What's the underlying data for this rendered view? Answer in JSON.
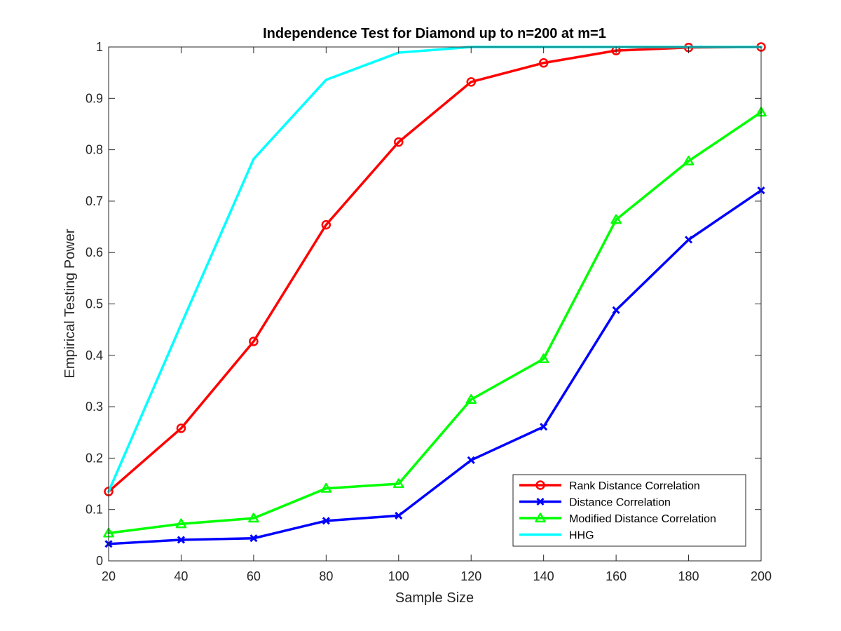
{
  "chart_data": {
    "type": "line",
    "title": "Independence Test for Diamond up to n=200 at m=1",
    "xlabel": "Sample Size",
    "ylabel": "Empirical Testing Power",
    "xlim": [
      20,
      200
    ],
    "ylim": [
      0,
      1
    ],
    "xticks": [
      20,
      40,
      60,
      80,
      100,
      120,
      140,
      160,
      180,
      200
    ],
    "yticks": [
      0,
      0.1,
      0.2,
      0.3,
      0.4,
      0.5,
      0.6,
      0.7,
      0.8,
      0.9,
      1
    ],
    "ytick_labels": [
      "0",
      "0.1",
      "0.2",
      "0.3",
      "0.4",
      "0.5",
      "0.6",
      "0.7",
      "0.8",
      "0.9",
      "1"
    ],
    "grid": false,
    "legend_position": "bottom-right",
    "x": [
      20,
      40,
      60,
      80,
      100,
      120,
      140,
      160,
      180,
      200
    ],
    "series": [
      {
        "name": "Rank Distance Correlation",
        "color": "#ff0000",
        "marker": "circle",
        "values": [
          0.135,
          0.258,
          0.427,
          0.654,
          0.815,
          0.932,
          0.969,
          0.993,
          0.999,
          1.0
        ]
      },
      {
        "name": "Distance Correlation",
        "color": "#0000ff",
        "marker": "x",
        "values": [
          0.033,
          0.041,
          0.044,
          0.078,
          0.088,
          0.196,
          0.261,
          0.488,
          0.625,
          0.721
        ]
      },
      {
        "name": "Modified Distance Correlation",
        "color": "#00ff00",
        "marker": "triangle",
        "values": [
          0.054,
          0.072,
          0.083,
          0.141,
          0.15,
          0.314,
          0.393,
          0.664,
          0.778,
          0.873
        ]
      },
      {
        "name": "HHG",
        "color": "#00ffff",
        "marker": "none",
        "values": [
          0.135,
          0.46,
          0.782,
          0.936,
          0.989,
          1.0,
          1.0,
          1.0,
          1.0,
          1.0
        ]
      }
    ]
  }
}
